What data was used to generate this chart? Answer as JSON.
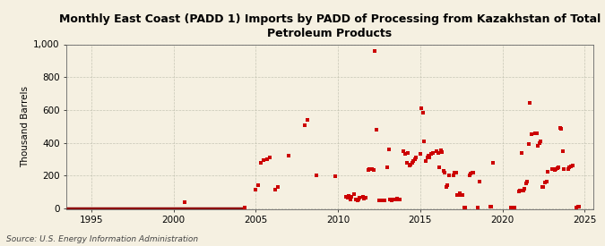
{
  "title": "Monthly East Coast (PADD 1) Imports by PADD of Processing from Kazakhstan of Total\nPetroleum Products",
  "ylabel": "Thousand Barrels",
  "source": "Source: U.S. Energy Information Administration",
  "background_color": "#f5f0e1",
  "marker_color": "#cc0000",
  "line_color": "#8b0000",
  "xlim": [
    1993.5,
    2025.5
  ],
  "ylim": [
    -5,
    1000
  ],
  "yticks": [
    0,
    200,
    400,
    600,
    800,
    1000
  ],
  "xticks": [
    1995,
    2000,
    2005,
    2010,
    2015,
    2020,
    2025
  ],
  "zero_line_start": 1993.5,
  "zero_line_end": 2004.25,
  "scatter_data": [
    [
      2000.67,
      35
    ],
    [
      2004.33,
      5
    ],
    [
      2005.0,
      115
    ],
    [
      2005.17,
      140
    ],
    [
      2005.33,
      280
    ],
    [
      2005.5,
      295
    ],
    [
      2005.67,
      300
    ],
    [
      2005.83,
      310
    ],
    [
      2006.17,
      115
    ],
    [
      2006.33,
      130
    ],
    [
      2007.0,
      320
    ],
    [
      2008.0,
      505
    ],
    [
      2008.17,
      540
    ],
    [
      2008.67,
      200
    ],
    [
      2009.83,
      195
    ],
    [
      2010.5,
      70
    ],
    [
      2010.58,
      65
    ],
    [
      2010.67,
      75
    ],
    [
      2010.75,
      55
    ],
    [
      2010.83,
      70
    ],
    [
      2011.0,
      85
    ],
    [
      2011.08,
      55
    ],
    [
      2011.17,
      50
    ],
    [
      2011.25,
      55
    ],
    [
      2011.33,
      65
    ],
    [
      2011.5,
      70
    ],
    [
      2011.58,
      60
    ],
    [
      2011.67,
      65
    ],
    [
      2011.83,
      235
    ],
    [
      2011.92,
      240
    ],
    [
      2012.0,
      240
    ],
    [
      2012.08,
      240
    ],
    [
      2012.17,
      235
    ],
    [
      2012.25,
      960
    ],
    [
      2012.33,
      480
    ],
    [
      2012.5,
      50
    ],
    [
      2012.58,
      50
    ],
    [
      2012.67,
      50
    ],
    [
      2012.75,
      50
    ],
    [
      2012.83,
      50
    ],
    [
      2013.0,
      250
    ],
    [
      2013.08,
      360
    ],
    [
      2013.17,
      55
    ],
    [
      2013.25,
      50
    ],
    [
      2013.33,
      55
    ],
    [
      2013.42,
      55
    ],
    [
      2013.5,
      55
    ],
    [
      2013.58,
      60
    ],
    [
      2013.67,
      55
    ],
    [
      2013.75,
      55
    ],
    [
      2014.0,
      350
    ],
    [
      2014.08,
      330
    ],
    [
      2014.17,
      280
    ],
    [
      2014.25,
      340
    ],
    [
      2014.33,
      260
    ],
    [
      2014.42,
      265
    ],
    [
      2014.5,
      280
    ],
    [
      2014.58,
      290
    ],
    [
      2014.67,
      300
    ],
    [
      2014.75,
      310
    ],
    [
      2015.0,
      330
    ],
    [
      2015.08,
      610
    ],
    [
      2015.17,
      580
    ],
    [
      2015.25,
      410
    ],
    [
      2015.33,
      290
    ],
    [
      2015.42,
      310
    ],
    [
      2015.5,
      320
    ],
    [
      2015.58,
      310
    ],
    [
      2015.67,
      330
    ],
    [
      2015.75,
      340
    ],
    [
      2016.0,
      350
    ],
    [
      2016.08,
      340
    ],
    [
      2016.17,
      250
    ],
    [
      2016.25,
      355
    ],
    [
      2016.33,
      345
    ],
    [
      2016.42,
      230
    ],
    [
      2016.5,
      220
    ],
    [
      2016.58,
      130
    ],
    [
      2016.67,
      140
    ],
    [
      2016.75,
      200
    ],
    [
      2017.0,
      200
    ],
    [
      2017.08,
      215
    ],
    [
      2017.17,
      220
    ],
    [
      2017.25,
      80
    ],
    [
      2017.33,
      80
    ],
    [
      2017.42,
      90
    ],
    [
      2017.5,
      80
    ],
    [
      2017.58,
      80
    ],
    [
      2017.67,
      5
    ],
    [
      2017.75,
      5
    ],
    [
      2018.0,
      200
    ],
    [
      2018.08,
      210
    ],
    [
      2018.17,
      220
    ],
    [
      2018.25,
      220
    ],
    [
      2018.5,
      5
    ],
    [
      2018.58,
      160
    ],
    [
      2019.25,
      10
    ],
    [
      2019.33,
      10
    ],
    [
      2019.42,
      280
    ],
    [
      2020.5,
      5
    ],
    [
      2020.58,
      5
    ],
    [
      2020.67,
      5
    ],
    [
      2020.75,
      5
    ],
    [
      2021.0,
      100
    ],
    [
      2021.08,
      110
    ],
    [
      2021.17,
      340
    ],
    [
      2021.25,
      110
    ],
    [
      2021.33,
      120
    ],
    [
      2021.42,
      150
    ],
    [
      2021.5,
      160
    ],
    [
      2021.58,
      390
    ],
    [
      2021.67,
      640
    ],
    [
      2021.75,
      450
    ],
    [
      2022.0,
      460
    ],
    [
      2022.08,
      460
    ],
    [
      2022.17,
      380
    ],
    [
      2022.25,
      395
    ],
    [
      2022.33,
      410
    ],
    [
      2022.42,
      130
    ],
    [
      2022.5,
      130
    ],
    [
      2022.58,
      155
    ],
    [
      2022.67,
      160
    ],
    [
      2022.75,
      225
    ],
    [
      2023.0,
      240
    ],
    [
      2023.08,
      240
    ],
    [
      2023.17,
      235
    ],
    [
      2023.25,
      240
    ],
    [
      2023.33,
      245
    ],
    [
      2023.42,
      250
    ],
    [
      2023.5,
      490
    ],
    [
      2023.58,
      485
    ],
    [
      2023.67,
      350
    ],
    [
      2023.75,
      240
    ],
    [
      2024.0,
      240
    ],
    [
      2024.08,
      250
    ],
    [
      2024.17,
      255
    ],
    [
      2024.25,
      260
    ],
    [
      2024.5,
      5
    ],
    [
      2024.58,
      10
    ],
    [
      2024.67,
      10
    ]
  ]
}
